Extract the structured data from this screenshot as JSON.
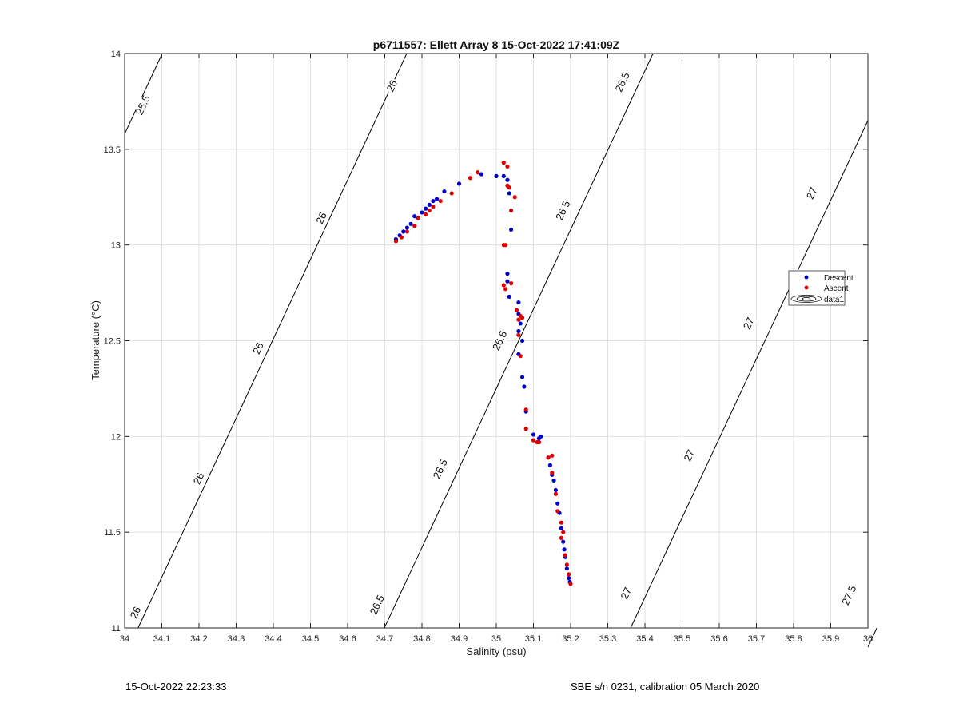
{
  "chart_data": {
    "type": "scatter",
    "title": "p6711557: Ellett Array 8 15-Oct-2022 17:41:09Z",
    "xlabel": "Salinity (psu)",
    "ylabel": "Temperature (°C)",
    "xlim": [
      34,
      36
    ],
    "ylim": [
      11,
      14
    ],
    "xticks": [
      "34",
      "34.1",
      "34.2",
      "34.3",
      "34.4",
      "34.5",
      "34.6",
      "34.7",
      "34.8",
      "34.9",
      "35",
      "35.1",
      "35.2",
      "35.3",
      "35.4",
      "35.5",
      "35.6",
      "35.7",
      "35.8",
      "35.9",
      "36"
    ],
    "yticks": [
      "11",
      "11.5",
      "12",
      "12.5",
      "13",
      "13.5",
      "14"
    ],
    "grid": true,
    "legend_placement": "right",
    "legend": [
      "Descent",
      "Ascent",
      "data1"
    ],
    "colors": {
      "descent": "#0000cc",
      "ascent": "#dd0000",
      "contour": "#000000",
      "grid": "#e0e0e0"
    },
    "series": [
      {
        "name": "Descent",
        "x": [
          34.73,
          34.74,
          34.75,
          34.76,
          34.77,
          34.78,
          34.8,
          34.81,
          34.82,
          34.83,
          34.84,
          34.86,
          34.9,
          34.96,
          35.0,
          35.02,
          35.03,
          35.035,
          35.04,
          35.03,
          35.03,
          35.035,
          35.06,
          35.06,
          35.065,
          35.06,
          35.07,
          35.06,
          35.07,
          35.075,
          35.08,
          35.1,
          35.115,
          35.12,
          35.14,
          35.145,
          35.15,
          35.155,
          35.16,
          35.165,
          35.17,
          35.175,
          35.18,
          35.183,
          35.186,
          35.19,
          35.195,
          35.198
        ],
        "y": [
          13.03,
          13.05,
          13.07,
          13.09,
          13.11,
          13.15,
          13.17,
          13.19,
          13.21,
          13.23,
          13.24,
          13.28,
          13.32,
          13.37,
          13.36,
          13.36,
          13.34,
          13.27,
          13.08,
          12.85,
          12.81,
          12.73,
          12.7,
          12.64,
          12.59,
          12.55,
          12.5,
          12.43,
          12.31,
          12.26,
          12.13,
          12.01,
          11.99,
          12.0,
          11.89,
          11.85,
          11.8,
          11.77,
          11.72,
          11.65,
          11.6,
          11.52,
          11.45,
          11.41,
          11.37,
          11.31,
          11.26,
          11.24
        ]
      },
      {
        "name": "Ascent",
        "x": [
          34.73,
          34.745,
          34.76,
          34.78,
          34.79,
          34.81,
          34.82,
          34.83,
          34.85,
          34.88,
          34.93,
          34.95,
          35.02,
          35.03,
          35.03,
          35.035,
          35.04,
          35.05,
          35.02,
          35.025,
          35.02,
          35.025,
          35.04,
          35.055,
          35.065,
          35.06,
          35.07,
          35.06,
          35.065,
          35.08,
          35.08,
          35.1,
          35.11,
          35.115,
          35.14,
          35.15,
          35.15,
          35.16,
          35.165,
          35.175,
          35.18,
          35.175,
          35.185,
          35.19,
          35.195,
          35.2
        ],
        "y": [
          13.02,
          13.04,
          13.07,
          13.1,
          13.14,
          13.16,
          13.18,
          13.2,
          13.23,
          13.27,
          13.35,
          13.38,
          13.43,
          13.41,
          13.31,
          13.3,
          13.18,
          13.25,
          13.0,
          13.0,
          12.79,
          12.77,
          12.8,
          12.66,
          12.63,
          12.61,
          12.62,
          12.53,
          12.42,
          12.14,
          12.04,
          11.98,
          11.97,
          11.97,
          11.89,
          11.9,
          11.81,
          11.7,
          11.61,
          11.55,
          11.5,
          11.47,
          11.38,
          11.33,
          11.28,
          11.23
        ]
      }
    ],
    "contours": [
      {
        "level": "25.5",
        "t_at_s34": 13.58,
        "label_positions": [
          [
            34.05,
            13.73
          ]
        ]
      },
      {
        "level": "26",
        "t_at_s34": 10.85,
        "label_positions": [
          [
            34.03,
            11.08
          ],
          [
            34.2,
            11.78
          ],
          [
            34.36,
            12.46
          ],
          [
            34.53,
            13.14
          ],
          [
            34.72,
            13.83
          ]
        ]
      },
      {
        "level": "26.5",
        "t_at_s34": 8.1,
        "label_positions": [
          [
            34.68,
            11.12
          ],
          [
            34.85,
            11.83
          ],
          [
            35.01,
            12.5
          ],
          [
            35.18,
            13.18
          ],
          [
            35.34,
            13.85
          ]
        ]
      },
      {
        "level": "27",
        "t_at_s34": 5.35,
        "label_positions": [
          [
            35.35,
            11.18
          ],
          [
            35.52,
            11.9
          ],
          [
            35.68,
            12.59
          ],
          [
            35.85,
            13.27
          ]
        ]
      },
      {
        "level": "27.5",
        "t_at_s34": 2.6,
        "label_positions": [
          [
            35.95,
            11.17
          ]
        ]
      }
    ],
    "contour_slope": 4.15
  },
  "footer": {
    "left": "15-Oct-2022 22:23:33",
    "right": "SBE s/n 0231, calibration 05 March 2020"
  }
}
